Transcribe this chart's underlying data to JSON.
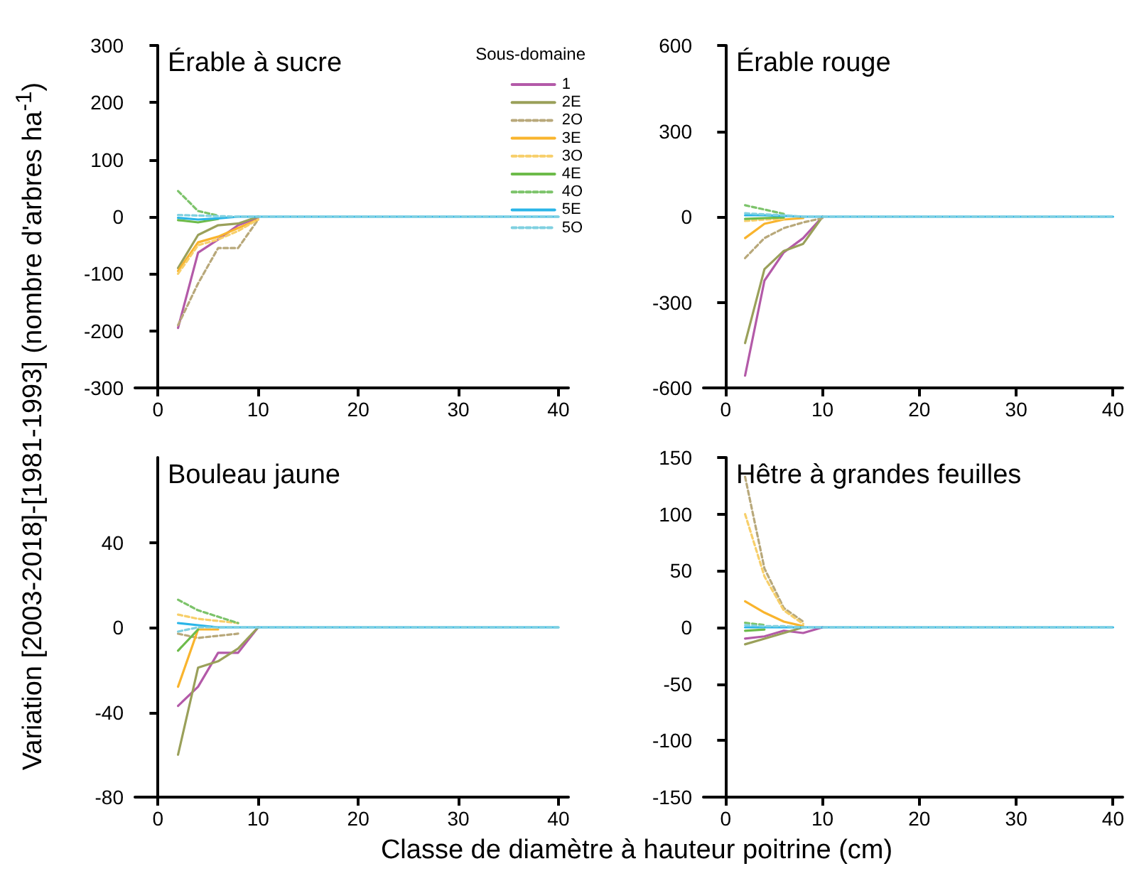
{
  "chart_data": [
    {
      "type": "line",
      "title": "Érable à sucre",
      "ylabel": "Variation [2003-2018]-[1981-1993] (nombre d'arbres ha$^{-1}$)",
      "legend": "top right",
      "legend_title": "Sous-domaine",
      "x": [
        2,
        4,
        6,
        8,
        10,
        20,
        30,
        40
      ],
      "xlim": [
        -2.3,
        41
      ],
      "xticks": [
        0,
        10,
        20,
        30,
        40
      ],
      "ylim": [
        -300,
        300
      ],
      "yticks": [
        -300,
        -200,
        -100,
        0,
        100,
        200,
        300
      ],
      "series": [
        {
          "name": "1",
          "color": "#b35aa8",
          "line_style": "solid",
          "values": [
            -195,
            -63,
            -40,
            -15,
            -2,
            null,
            null,
            null
          ]
        },
        {
          "name": "2E",
          "color": "#9aa05a",
          "line_style": "solid",
          "values": [
            -90,
            -32,
            -15,
            -12,
            0,
            null,
            null,
            null
          ]
        },
        {
          "name": "2O",
          "color": "#b8a87a",
          "line_style": "dashed",
          "values": [
            -190,
            -117,
            -55,
            -55,
            -5,
            null,
            null,
            null
          ]
        },
        {
          "name": "3E",
          "color": "#f9b42d",
          "line_style": "solid",
          "values": [
            -95,
            -45,
            -35,
            -20,
            -5,
            null,
            null,
            null
          ]
        },
        {
          "name": "3O",
          "color": "#f7cf6a",
          "line_style": "dashed",
          "values": [
            -100,
            -50,
            -40,
            -25,
            -5,
            null,
            null,
            null
          ]
        },
        {
          "name": "4E",
          "color": "#6dbb4a",
          "line_style": "solid",
          "values": [
            -6,
            -10,
            -4,
            null,
            null,
            null,
            null,
            null
          ]
        },
        {
          "name": "4O",
          "color": "#7cc36a",
          "line_style": "dashed",
          "values": [
            45,
            10,
            2,
            null,
            null,
            null,
            null,
            null
          ]
        },
        {
          "name": "5E",
          "color": "#2ab5e8",
          "line_style": "solid",
          "values": [
            -2,
            -5,
            -3,
            0,
            0,
            0,
            0,
            0
          ]
        },
        {
          "name": "5O",
          "color": "#7fd0e0",
          "line_style": "dashed",
          "values": [
            3,
            2,
            1,
            0,
            0,
            0,
            0,
            0
          ]
        }
      ]
    },
    {
      "type": "line",
      "title": "Érable rouge",
      "x": [
        2,
        4,
        6,
        8,
        10,
        20,
        30,
        40
      ],
      "xlim": [
        -2.3,
        41
      ],
      "xticks": [
        0,
        10,
        20,
        30,
        40
      ],
      "ylim": [
        -600,
        600
      ],
      "yticks": [
        -600,
        -300,
        0,
        300,
        600
      ],
      "series": [
        {
          "color": "#b35aa8",
          "line_style": "solid",
          "values": [
            -557,
            -224,
            -125,
            -75,
            0,
            null,
            null,
            null
          ]
        },
        {
          "color": "#9aa05a",
          "line_style": "solid",
          "values": [
            -443,
            -184,
            -120,
            -95,
            0,
            null,
            null,
            null
          ]
        },
        {
          "color": "#b8a87a",
          "line_style": "dashed",
          "values": [
            -145,
            -75,
            -40,
            -20,
            -5,
            null,
            null,
            null
          ]
        },
        {
          "color": "#f9b42d",
          "line_style": "solid",
          "values": [
            -75,
            -25,
            -10,
            -5,
            null,
            null,
            null,
            null
          ]
        },
        {
          "color": "#f7cf6a",
          "line_style": "dashed",
          "values": [
            -15,
            -10,
            -8,
            null,
            null,
            null,
            null,
            null
          ]
        },
        {
          "color": "#6dbb4a",
          "line_style": "solid",
          "values": [
            -8,
            -5,
            -3,
            null,
            null,
            null,
            null,
            null
          ]
        },
        {
          "color": "#7cc36a",
          "line_style": "dashed",
          "values": [
            40,
            25,
            10,
            null,
            null,
            null,
            null,
            null
          ]
        },
        {
          "color": "#2ab5e8",
          "line_style": "solid",
          "values": [
            5,
            5,
            3,
            0,
            0,
            0,
            0,
            0
          ]
        },
        {
          "color": "#7fd0e0",
          "line_style": "dashed",
          "values": [
            12,
            8,
            5,
            0,
            0,
            0,
            0,
            0
          ]
        }
      ]
    },
    {
      "type": "line",
      "title": "Bouleau jaune",
      "xlabel": "Classe de diamètre à hauteur poitrine (cm)",
      "x": [
        2,
        4,
        6,
        8,
        10,
        20,
        30,
        40
      ],
      "xlim": [
        -2.3,
        41
      ],
      "xticks": [
        0,
        10,
        20,
        30,
        40
      ],
      "ylim": [
        -80,
        80
      ],
      "yticks": [
        -80,
        -40,
        0,
        40
      ],
      "series": [
        {
          "color": "#b35aa8",
          "line_style": "solid",
          "values": [
            -37,
            -28,
            -12,
            -12,
            0,
            null,
            null,
            null
          ]
        },
        {
          "color": "#9aa05a",
          "line_style": "solid",
          "values": [
            -60,
            -19,
            -16,
            -10,
            0,
            null,
            null,
            null
          ]
        },
        {
          "color": "#b8a87a",
          "line_style": "dashed",
          "values": [
            -3,
            -5,
            -4,
            -3,
            null,
            null,
            null,
            null
          ]
        },
        {
          "color": "#f9b42d",
          "line_style": "solid",
          "values": [
            -28,
            -1,
            -1,
            null,
            null,
            null,
            null,
            null
          ]
        },
        {
          "color": "#f7cf6a",
          "line_style": "dashed",
          "values": [
            6,
            4,
            3,
            2,
            null,
            null,
            null,
            null
          ]
        },
        {
          "color": "#6dbb4a",
          "line_style": "solid",
          "values": [
            -11,
            -1,
            null,
            null,
            null,
            null,
            null,
            null
          ]
        },
        {
          "color": "#7cc36a",
          "line_style": "dashed",
          "values": [
            13,
            8,
            5,
            2,
            null,
            null,
            null,
            null
          ]
        },
        {
          "color": "#2ab5e8",
          "line_style": "solid",
          "values": [
            2,
            1,
            0,
            0,
            0,
            0,
            0,
            0
          ]
        },
        {
          "color": "#7fd0e0",
          "line_style": "dashed",
          "values": [
            -2,
            0,
            0,
            0,
            0,
            0,
            0,
            0
          ]
        }
      ]
    },
    {
      "type": "line",
      "title": "Hêtre à grandes feuilles",
      "x": [
        2,
        4,
        6,
        8,
        10,
        20,
        30,
        40
      ],
      "xlim": [
        -2.3,
        41
      ],
      "xticks": [
        0,
        10,
        20,
        30,
        40
      ],
      "ylim": [
        -150,
        150
      ],
      "yticks": [
        -150,
        -100,
        -50,
        0,
        50,
        100,
        150
      ],
      "series": [
        {
          "color": "#b35aa8",
          "line_style": "solid",
          "values": [
            -10,
            -8,
            -3,
            -5,
            0,
            null,
            null,
            null
          ]
        },
        {
          "color": "#9aa05a",
          "line_style": "solid",
          "values": [
            -15,
            -10,
            -5,
            0,
            null,
            null,
            null,
            null
          ]
        },
        {
          "color": "#b8a87a",
          "line_style": "dashed",
          "values": [
            133,
            52,
            17,
            5,
            null,
            null,
            null,
            null
          ]
        },
        {
          "color": "#f9b42d",
          "line_style": "solid",
          "values": [
            23,
            13,
            5,
            1,
            null,
            null,
            null,
            null
          ]
        },
        {
          "color": "#f7cf6a",
          "line_style": "dashed",
          "values": [
            100,
            45,
            15,
            3,
            null,
            null,
            null,
            null
          ]
        },
        {
          "color": "#6dbb4a",
          "line_style": "solid",
          "values": [
            -3,
            -2,
            null,
            null,
            null,
            null,
            null,
            null
          ]
        },
        {
          "color": "#7cc36a",
          "line_style": "dashed",
          "values": [
            4,
            2,
            null,
            null,
            null,
            null,
            null,
            null
          ]
        },
        {
          "color": "#2ab5e8",
          "line_style": "solid",
          "values": [
            0,
            0,
            0,
            0,
            0,
            0,
            0,
            0
          ]
        },
        {
          "color": "#7fd0e0",
          "line_style": "dashed",
          "values": [
            2,
            1,
            1,
            0,
            0,
            0,
            0,
            0
          ]
        }
      ]
    }
  ]
}
